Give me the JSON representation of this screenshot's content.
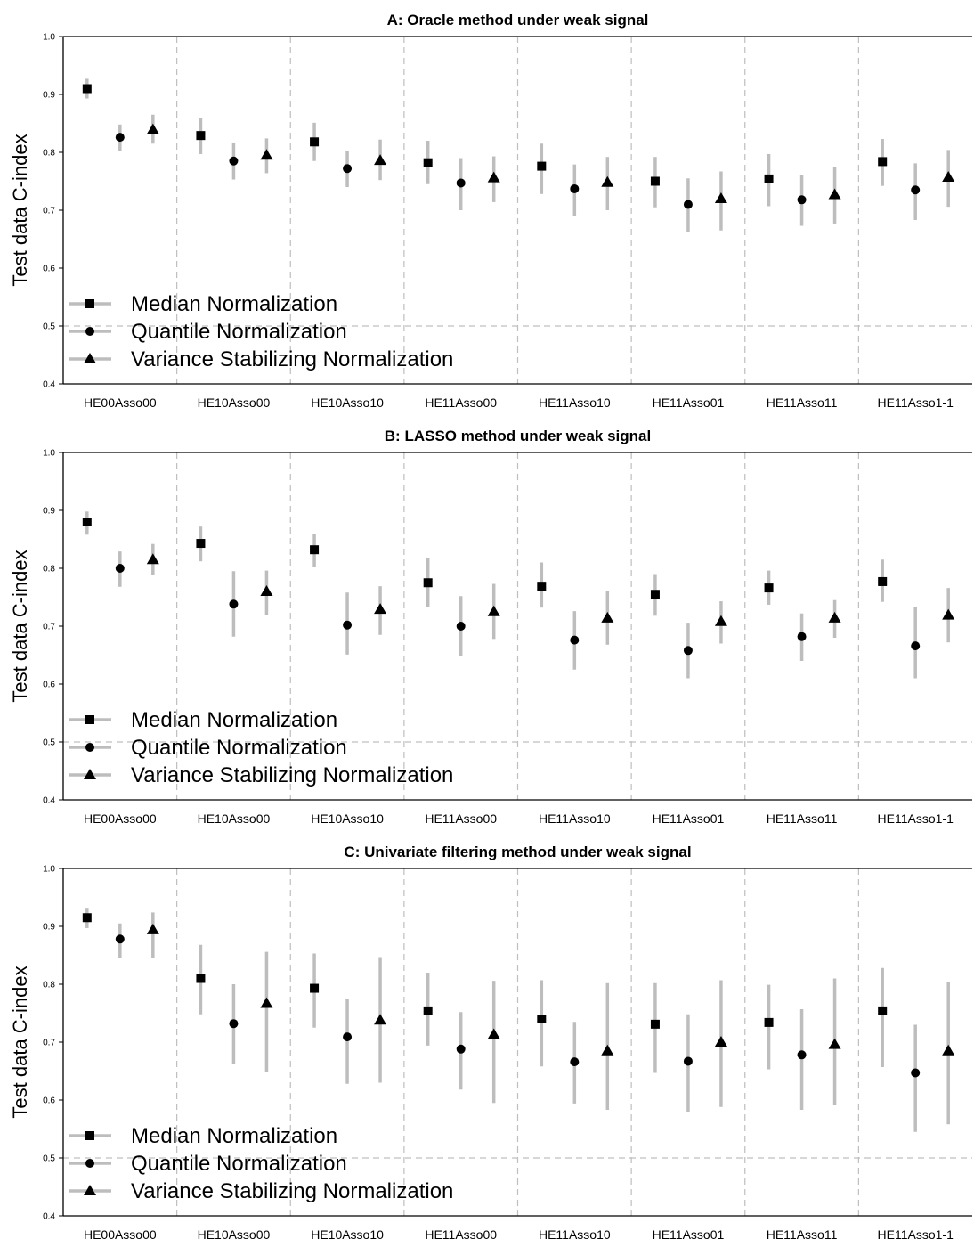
{
  "figure": {
    "colors": {
      "marker": "#000000",
      "error_bar": "#bdbdbd",
      "grid": "#bfbfbf",
      "axis": "#000000"
    }
  },
  "chart_data": [
    {
      "type": "scatter",
      "title": "A: Oracle method under weak signal",
      "ylabel": "Test data C-index",
      "ylim": [
        0.4,
        1.0
      ],
      "yticks": [
        "0.4",
        "0.5",
        "0.6",
        "0.7",
        "0.8",
        "0.9",
        "1.0"
      ],
      "reference_line": 0.5,
      "categories": [
        "HE00Asso00",
        "HE10Asso00",
        "HE10Asso10",
        "HE11Asso00",
        "HE11Asso10",
        "HE11Asso01",
        "HE11Asso11",
        "HE11Asso1-1"
      ],
      "legend": {
        "placement": "bottom-left"
      },
      "series": [
        {
          "name": "Median Normalization",
          "marker": "square",
          "values": [
            0.91,
            0.829,
            0.818,
            0.782,
            0.776,
            0.75,
            0.754,
            0.784
          ],
          "lower": [
            0.893,
            0.797,
            0.785,
            0.745,
            0.728,
            0.705,
            0.707,
            0.742
          ],
          "upper": [
            0.927,
            0.86,
            0.851,
            0.82,
            0.815,
            0.792,
            0.797,
            0.823
          ]
        },
        {
          "name": "Quantile Normalization",
          "marker": "circle",
          "values": [
            0.826,
            0.785,
            0.772,
            0.747,
            0.737,
            0.71,
            0.718,
            0.735
          ],
          "lower": [
            0.803,
            0.753,
            0.74,
            0.7,
            0.69,
            0.662,
            0.673,
            0.683
          ],
          "upper": [
            0.848,
            0.817,
            0.803,
            0.79,
            0.779,
            0.755,
            0.761,
            0.781
          ]
        },
        {
          "name": "Variance Stabilizing Normalization",
          "marker": "triangle",
          "values": [
            0.839,
            0.795,
            0.786,
            0.756,
            0.748,
            0.72,
            0.727,
            0.757
          ],
          "lower": [
            0.815,
            0.764,
            0.752,
            0.714,
            0.7,
            0.665,
            0.677,
            0.706
          ],
          "upper": [
            0.865,
            0.824,
            0.822,
            0.793,
            0.792,
            0.767,
            0.774,
            0.804
          ]
        }
      ]
    },
    {
      "type": "scatter",
      "title": "B: LASSO method under weak signal",
      "ylabel": "Test data C-index",
      "ylim": [
        0.4,
        1.0
      ],
      "yticks": [
        "0.4",
        "0.5",
        "0.6",
        "0.7",
        "0.8",
        "0.9",
        "1.0"
      ],
      "reference_line": 0.5,
      "categories": [
        "HE00Asso00",
        "HE10Asso00",
        "HE10Asso10",
        "HE11Asso00",
        "HE11Asso10",
        "HE11Asso01",
        "HE11Asso11",
        "HE11Asso1-1"
      ],
      "legend": {
        "placement": "bottom-left"
      },
      "series": [
        {
          "name": "Median Normalization",
          "marker": "square",
          "values": [
            0.88,
            0.843,
            0.832,
            0.775,
            0.769,
            0.755,
            0.766,
            0.777
          ],
          "lower": [
            0.858,
            0.812,
            0.803,
            0.733,
            0.732,
            0.718,
            0.737,
            0.742
          ],
          "upper": [
            0.898,
            0.872,
            0.86,
            0.818,
            0.81,
            0.79,
            0.796,
            0.815
          ]
        },
        {
          "name": "Quantile Normalization",
          "marker": "circle",
          "values": [
            0.8,
            0.738,
            0.702,
            0.7,
            0.676,
            0.658,
            0.682,
            0.666
          ],
          "lower": [
            0.768,
            0.682,
            0.651,
            0.648,
            0.625,
            0.61,
            0.64,
            0.61
          ],
          "upper": [
            0.829,
            0.795,
            0.758,
            0.752,
            0.726,
            0.706,
            0.722,
            0.733
          ]
        },
        {
          "name": "Variance Stabilizing Normalization",
          "marker": "triangle",
          "values": [
            0.815,
            0.76,
            0.729,
            0.725,
            0.714,
            0.708,
            0.714,
            0.719
          ],
          "lower": [
            0.788,
            0.72,
            0.685,
            0.678,
            0.668,
            0.67,
            0.68,
            0.672
          ],
          "upper": [
            0.842,
            0.796,
            0.769,
            0.773,
            0.76,
            0.743,
            0.745,
            0.766
          ]
        }
      ]
    },
    {
      "type": "scatter",
      "title": "C: Univariate filtering method under weak signal",
      "ylabel": "Test data C-index",
      "ylim": [
        0.4,
        1.0
      ],
      "yticks": [
        "0.4",
        "0.5",
        "0.6",
        "0.7",
        "0.8",
        "0.9",
        "1.0"
      ],
      "reference_line": 0.5,
      "categories": [
        "HE00Asso00",
        "HE10Asso00",
        "HE10Asso10",
        "HE11Asso00",
        "HE11Asso10",
        "HE11Asso01",
        "HE11Asso11",
        "HE11Asso1-1"
      ],
      "legend": {
        "placement": "bottom-left"
      },
      "series": [
        {
          "name": "Median Normalization",
          "marker": "square",
          "values": [
            0.915,
            0.81,
            0.793,
            0.754,
            0.74,
            0.731,
            0.734,
            0.754
          ],
          "lower": [
            0.897,
            0.748,
            0.725,
            0.694,
            0.658,
            0.647,
            0.653,
            0.657
          ],
          "upper": [
            0.932,
            0.868,
            0.853,
            0.82,
            0.807,
            0.802,
            0.799,
            0.828
          ]
        },
        {
          "name": "Quantile Normalization",
          "marker": "circle",
          "values": [
            0.878,
            0.732,
            0.709,
            0.688,
            0.666,
            0.667,
            0.678,
            0.647
          ],
          "lower": [
            0.845,
            0.662,
            0.628,
            0.618,
            0.594,
            0.58,
            0.583,
            0.545
          ],
          "upper": [
            0.905,
            0.8,
            0.775,
            0.752,
            0.735,
            0.748,
            0.757,
            0.73
          ]
        },
        {
          "name": "Variance Stabilizing Normalization",
          "marker": "triangle",
          "values": [
            0.894,
            0.767,
            0.738,
            0.713,
            0.685,
            0.7,
            0.696,
            0.685
          ],
          "lower": [
            0.845,
            0.648,
            0.63,
            0.595,
            0.583,
            0.588,
            0.592,
            0.558
          ],
          "upper": [
            0.924,
            0.856,
            0.847,
            0.806,
            0.802,
            0.807,
            0.81,
            0.804
          ]
        }
      ]
    }
  ]
}
